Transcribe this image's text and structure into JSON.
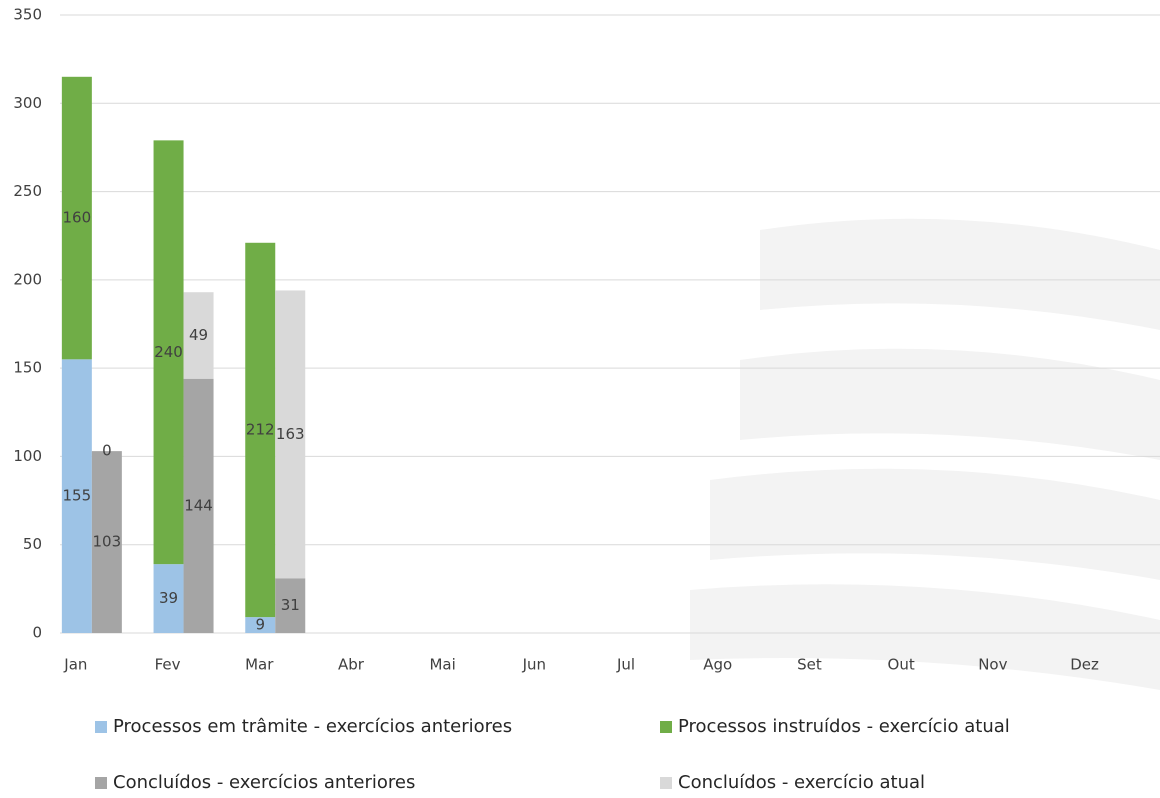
{
  "chart_data": {
    "type": "bar",
    "stacked": true,
    "categories": [
      "Jan",
      "Fev",
      "Mar",
      "Abr",
      "Mai",
      "Jun",
      "Jul",
      "Ago",
      "Set",
      "Out",
      "Nov",
      "Dez"
    ],
    "series": [
      {
        "name": "Processos em trâmite - exercícios anteriores",
        "color": "#9dc3e6",
        "stack": 0,
        "values": [
          155,
          39,
          9,
          null,
          null,
          null,
          null,
          null,
          null,
          null,
          null,
          null
        ]
      },
      {
        "name": "Processos instruídos - exercício atual",
        "color": "#70ad47",
        "stack": 0,
        "values": [
          160,
          240,
          212,
          null,
          null,
          null,
          null,
          null,
          null,
          null,
          null,
          null
        ]
      },
      {
        "name": "Concluídos - exercícios anteriores",
        "color": "#a5a5a5",
        "stack": 1,
        "values": [
          103,
          144,
          31,
          null,
          null,
          null,
          null,
          null,
          null,
          null,
          null,
          null
        ]
      },
      {
        "name": "Concluídos - exercício atual",
        "color": "#d9d9d9",
        "stack": 1,
        "values": [
          0,
          49,
          163,
          null,
          null,
          null,
          null,
          null,
          null,
          null,
          null,
          null
        ]
      }
    ],
    "ylim": [
      0,
      350
    ],
    "yticks": [
      0,
      50,
      100,
      150,
      200,
      250,
      300,
      350
    ],
    "grid": true,
    "legend": "bottom"
  }
}
